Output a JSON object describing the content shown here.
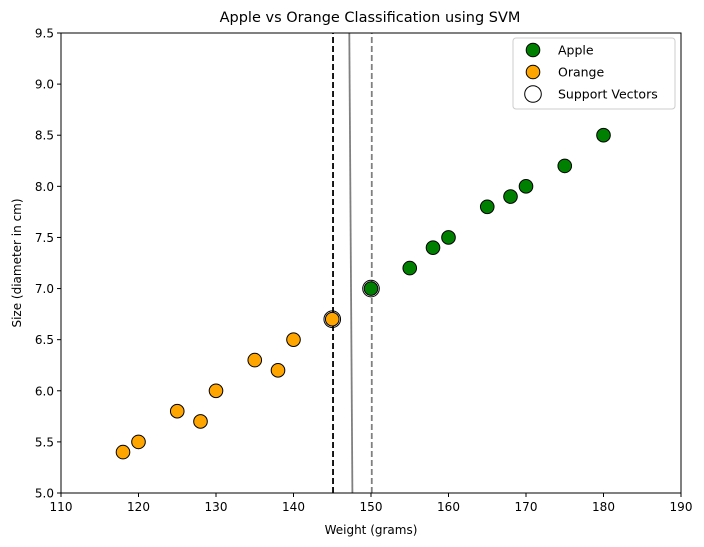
{
  "chart_data": {
    "type": "scatter",
    "title": "Apple vs Orange Classification using SVM",
    "xlabel": "Weight (grams)",
    "ylabel": "Size (diameter in cm)",
    "xlim": [
      110,
      190
    ],
    "ylim": [
      5.0,
      9.5
    ],
    "x_ticks": [
      "110",
      "120",
      "130",
      "140",
      "150",
      "160",
      "170",
      "180",
      "190"
    ],
    "y_ticks": [
      "5.0",
      "5.5",
      "6.0",
      "6.5",
      "7.0",
      "7.5",
      "8.0",
      "8.5",
      "9.0",
      "9.5"
    ],
    "grid": false,
    "legend_position": "top-right",
    "series": [
      {
        "name": "Apple",
        "color": "#008000",
        "points": [
          [
            150,
            7.0
          ],
          [
            155,
            7.2
          ],
          [
            158,
            7.4
          ],
          [
            160,
            7.5
          ],
          [
            165,
            7.8
          ],
          [
            168,
            7.9
          ],
          [
            170,
            8.0
          ],
          [
            175,
            8.2
          ],
          [
            180,
            8.5
          ]
        ]
      },
      {
        "name": "Orange",
        "color": "#FFA500",
        "points": [
          [
            118,
            5.4
          ],
          [
            120,
            5.5
          ],
          [
            125,
            5.8
          ],
          [
            128,
            5.7
          ],
          [
            130,
            6.0
          ],
          [
            135,
            6.3
          ],
          [
            138,
            6.2
          ],
          [
            140,
            6.5
          ],
          [
            145,
            6.7
          ]
        ]
      },
      {
        "name": "Support Vectors",
        "color": "none",
        "points": [
          [
            145,
            6.7
          ],
          [
            150,
            7.0
          ]
        ]
      }
    ],
    "boundary_lines": [
      {
        "role": "decision-boundary",
        "style": "solid",
        "color": "#808080",
        "x_bottom": 147.6,
        "x_top": 147.2
      },
      {
        "role": "margin-right",
        "style": "dashed",
        "color": "#808080",
        "x_bottom": 150.1,
        "x_top": 150.1
      },
      {
        "role": "margin-left",
        "style": "dashed",
        "color": "#000000",
        "x_bottom": 145.1,
        "x_top": 145.1
      }
    ]
  }
}
